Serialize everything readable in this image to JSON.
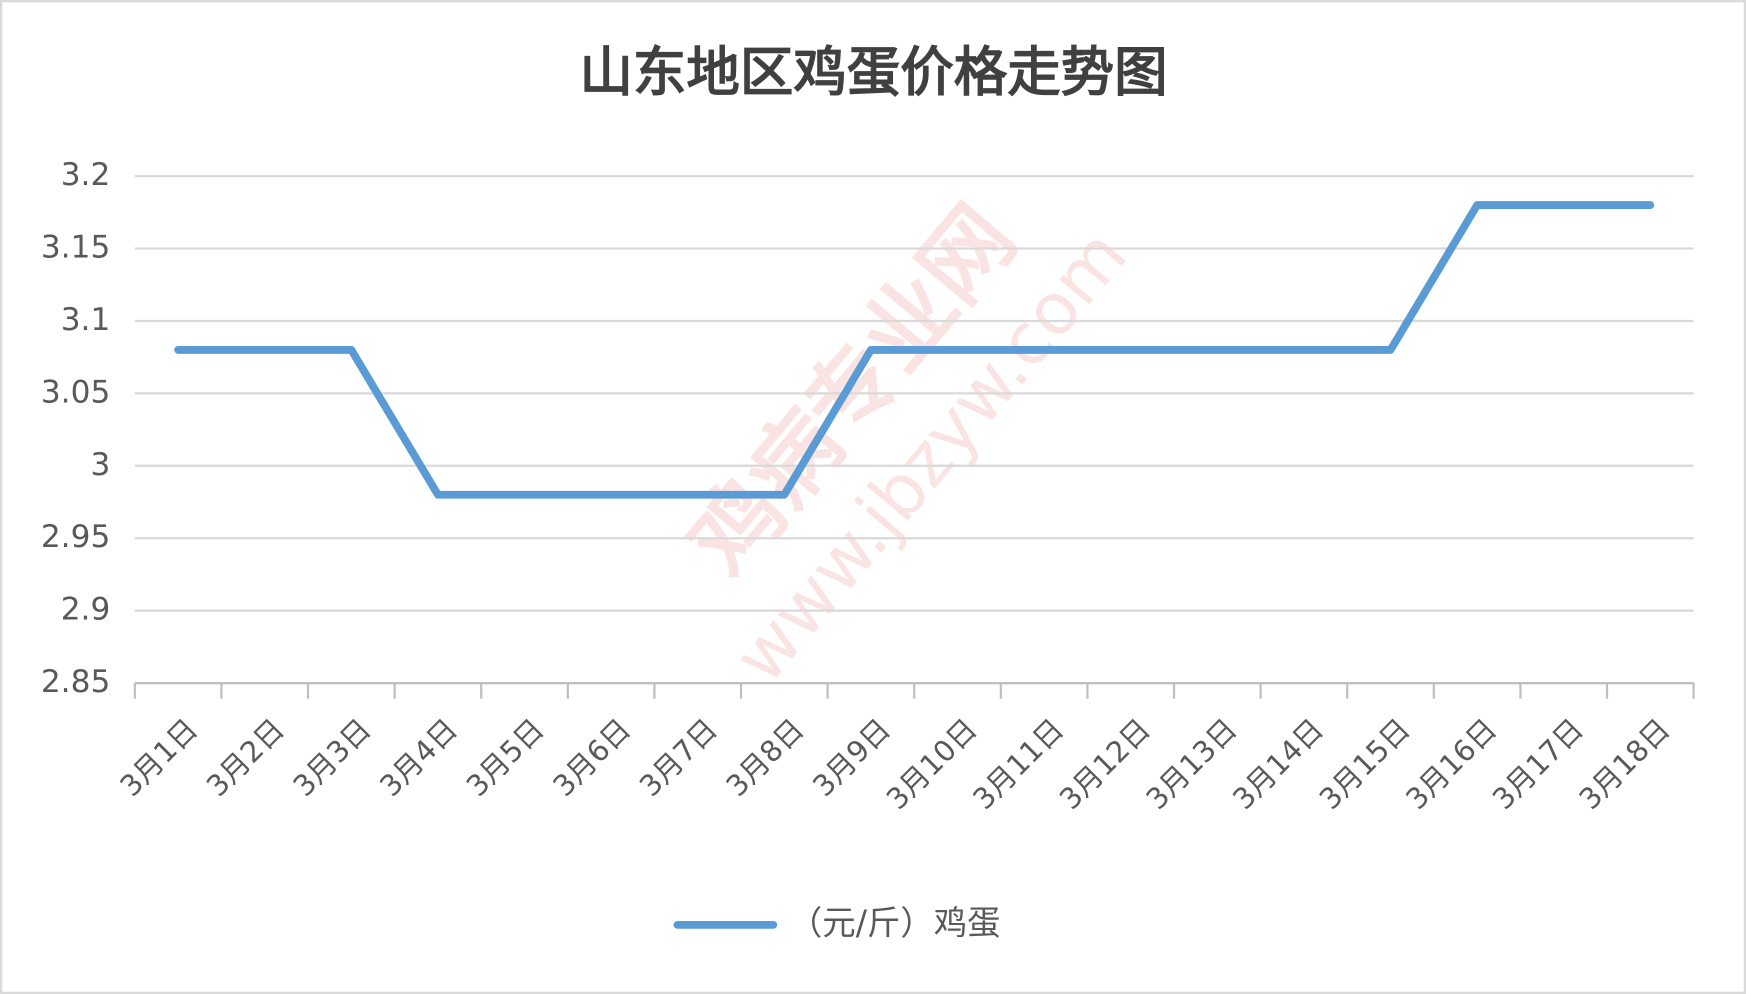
{
  "chart_data": {
    "type": "line",
    "title": "山东地区鸡蛋价格走势图",
    "categories": [
      "3月1日",
      "3月2日",
      "3月3日",
      "3月4日",
      "3月5日",
      "3月6日",
      "3月7日",
      "3月8日",
      "3月9日",
      "3月10日",
      "3月11日",
      "3月12日",
      "3月13日",
      "3月14日",
      "3月15日",
      "3月16日",
      "3月17日",
      "3月18日"
    ],
    "series": [
      {
        "name": "（元/斤）鸡蛋",
        "color": "#5b9bd5",
        "values": [
          3.08,
          3.08,
          3.08,
          2.98,
          2.98,
          2.98,
          2.98,
          2.98,
          3.08,
          3.08,
          3.08,
          3.08,
          3.08,
          3.08,
          3.08,
          3.18,
          3.18,
          3.18
        ]
      }
    ],
    "ylim": [
      2.85,
      3.2
    ],
    "yticks": [
      2.85,
      2.9,
      2.95,
      3,
      3.05,
      3.1,
      3.15,
      3.2
    ],
    "grid": true,
    "legend": "bottom",
    "watermark": {
      "name": "鸡病专业网",
      "url": "www.jbzyw.com"
    }
  }
}
